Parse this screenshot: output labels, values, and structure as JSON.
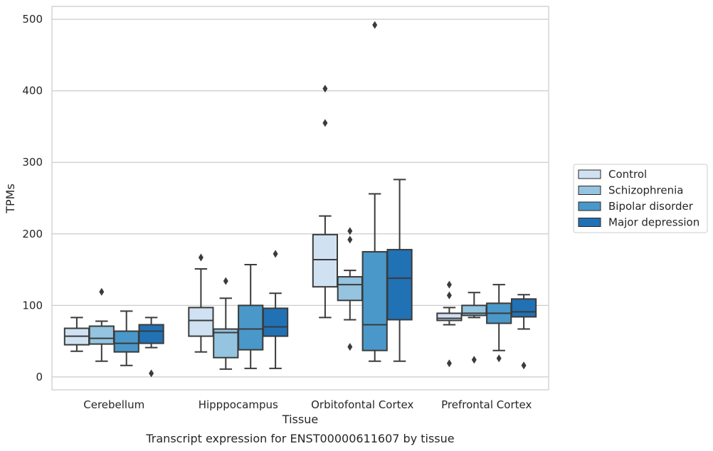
{
  "chart_data": {
    "type": "box",
    "title": "",
    "caption": "Transcript expression for ENST00000611607 by tissue",
    "xlabel": "Tissue",
    "ylabel": "TPMs",
    "ylim": [
      -18,
      518
    ],
    "yticks": [
      0,
      100,
      200,
      300,
      400,
      500
    ],
    "grid": true,
    "legend_position": "right",
    "categories": [
      "Cerebellum",
      "Hipppocampus",
      "Orbitofontal Cortex",
      "Prefrontal Cortex"
    ],
    "series": [
      {
        "name": "Control",
        "color": "#d0e1f2",
        "boxes": [
          {
            "whisker_low": 36,
            "q1": 45,
            "median": 57,
            "q3": 68,
            "whisker_high": 83,
            "outliers": []
          },
          {
            "whisker_low": 35,
            "q1": 57,
            "median": 79,
            "q3": 97,
            "whisker_high": 151,
            "outliers": [
              167
            ]
          },
          {
            "whisker_low": 83,
            "q1": 126,
            "median": 164,
            "q3": 199,
            "whisker_high": 225,
            "outliers": [
              355,
              403
            ]
          },
          {
            "whisker_low": 73,
            "q1": 79,
            "median": 82,
            "q3": 89,
            "whisker_high": 97,
            "outliers": [
              19,
              114,
              129
            ]
          }
        ]
      },
      {
        "name": "Schizophrenia",
        "color": "#94c4df",
        "boxes": [
          {
            "whisker_low": 22,
            "q1": 46,
            "median": 54,
            "q3": 71,
            "whisker_high": 78,
            "outliers": [
              119
            ]
          },
          {
            "whisker_low": 11,
            "q1": 27,
            "median": 62,
            "q3": 67,
            "whisker_high": 110,
            "outliers": [
              134
            ]
          },
          {
            "whisker_low": 80,
            "q1": 107,
            "median": 129,
            "q3": 140,
            "whisker_high": 149,
            "outliers": [
              42,
              192,
              204
            ]
          },
          {
            "whisker_low": 83,
            "q1": 86,
            "median": 89,
            "q3": 100,
            "whisker_high": 118,
            "outliers": [
              24
            ]
          }
        ]
      },
      {
        "name": "Bipolar disorder",
        "color": "#4a98c9",
        "boxes": [
          {
            "whisker_low": 16,
            "q1": 35,
            "median": 47,
            "q3": 64,
            "whisker_high": 92,
            "outliers": []
          },
          {
            "whisker_low": 12,
            "q1": 38,
            "median": 67,
            "q3": 100,
            "whisker_high": 157,
            "outliers": []
          },
          {
            "whisker_low": 22,
            "q1": 37,
            "median": 73,
            "q3": 175,
            "whisker_high": 256,
            "outliers": [
              492
            ]
          },
          {
            "whisker_low": 37,
            "q1": 75,
            "median": 89,
            "q3": 103,
            "whisker_high": 129,
            "outliers": [
              26
            ]
          }
        ]
      },
      {
        "name": "Major depression",
        "color": "#2171b5",
        "boxes": [
          {
            "whisker_low": 41,
            "q1": 47,
            "median": 64,
            "q3": 73,
            "whisker_high": 83,
            "outliers": [
              5
            ]
          },
          {
            "whisker_low": 12,
            "q1": 57,
            "median": 70,
            "q3": 96,
            "whisker_high": 117,
            "outliers": [
              172
            ]
          },
          {
            "whisker_low": 22,
            "q1": 80,
            "median": 138,
            "q3": 178,
            "whisker_high": 276,
            "outliers": []
          },
          {
            "whisker_low": 67,
            "q1": 84,
            "median": 91,
            "q3": 109,
            "whisker_high": 115,
            "outliers": [
              16
            ]
          }
        ]
      }
    ]
  }
}
